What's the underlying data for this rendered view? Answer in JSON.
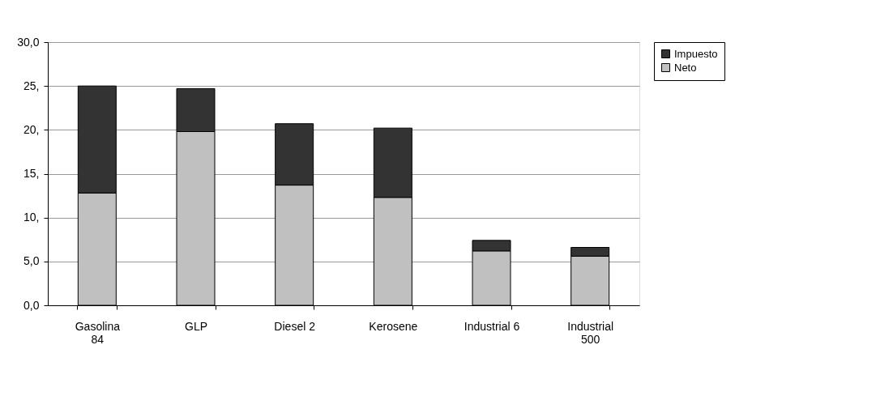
{
  "chart_data": {
    "type": "bar",
    "stacked": true,
    "categories": [
      "Gasolina\n84",
      "GLP",
      "Diesel 2",
      "Kerosene",
      "Industrial 6",
      "Industrial\n500"
    ],
    "series": [
      {
        "name": "Neto",
        "color": "#c0c0c0",
        "values": [
          12.8,
          19.8,
          13.7,
          12.3,
          6.2,
          5.6
        ]
      },
      {
        "name": "Impuesto",
        "color": "#333333",
        "values": [
          12.2,
          4.9,
          7.0,
          7.9,
          1.2,
          1.0
        ]
      }
    ],
    "ylim": [
      0,
      30
    ],
    "yticks": [
      {
        "value": 0,
        "label": "0,0"
      },
      {
        "value": 5,
        "label": "5,0"
      },
      {
        "value": 10,
        "label": "10,"
      },
      {
        "value": 15,
        "label": "15,"
      },
      {
        "value": 20,
        "label": "20,"
      },
      {
        "value": 25,
        "label": "25,"
      },
      {
        "value": 30,
        "label": "30,0"
      }
    ],
    "grid": "y",
    "legend": "right"
  }
}
